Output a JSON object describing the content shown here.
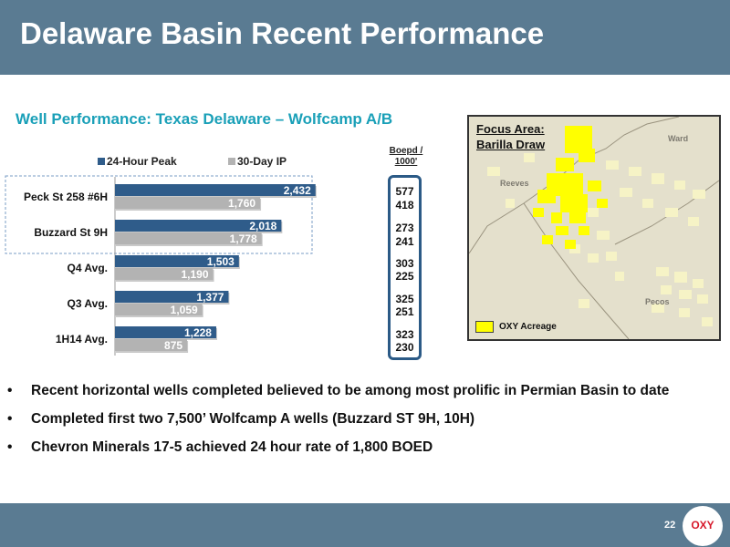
{
  "header": {
    "title": "Delaware Basin Recent Performance"
  },
  "chart_data": {
    "type": "bar",
    "title": "Well Performance: Texas Delaware – Wolfcamp A/B",
    "categories": [
      "Peck St 258 #6H",
      "Buzzard St 9H",
      "Q4 Avg.",
      "Q3 Avg.",
      "1H14 Avg."
    ],
    "series": [
      {
        "name": "24-Hour Peak",
        "color": "#2f5c8a",
        "values": [
          2432,
          2018,
          1503,
          1377,
          1228
        ],
        "labels": [
          "2,432",
          "2,018",
          "1,503",
          "1,377",
          "1,228"
        ]
      },
      {
        "name": "30-Day IP",
        "color": "#b3b3b3",
        "values": [
          1760,
          1778,
          1190,
          1059,
          875
        ],
        "labels": [
          "1,760",
          "1,778",
          "1,190",
          "1,059",
          "875"
        ]
      }
    ],
    "legend": "top",
    "orientation": "horizontal",
    "xlim": [
      0,
      2700
    ],
    "highlighted_categories": [
      "Peck St 258 #6H",
      "Buzzard St 9H"
    ]
  },
  "boepd": {
    "header_line1": "Boepd /",
    "header_line2": "1000'",
    "values": [
      [
        "577",
        "418"
      ],
      [
        "273",
        "241"
      ],
      [
        "303",
        "225"
      ],
      [
        "325",
        "251"
      ],
      [
        "323",
        "230"
      ]
    ]
  },
  "map": {
    "title_line1": "Focus Area:",
    "title_line2": "Barilla Draw",
    "labels": {
      "ward": "Ward",
      "reeves": "Reeves",
      "pecos": "Pecos"
    },
    "legend_label": "OXY Acreage",
    "colors": {
      "oxy_acreage": "#ffff00",
      "other_acreage": "#f6f3c6",
      "background": "#e4e0cc"
    }
  },
  "bullets": [
    "Recent horizontal wells completed believed to be among most prolific in Permian Basin to date",
    "Completed first two 7,500’ Wolfcamp A wells (Buzzard ST 9H, 10H)",
    "Chevron Minerals 17-5 achieved 24 hour rate of 1,800 BOED"
  ],
  "footer": {
    "page_number": "22",
    "logo_text": "OXY"
  }
}
